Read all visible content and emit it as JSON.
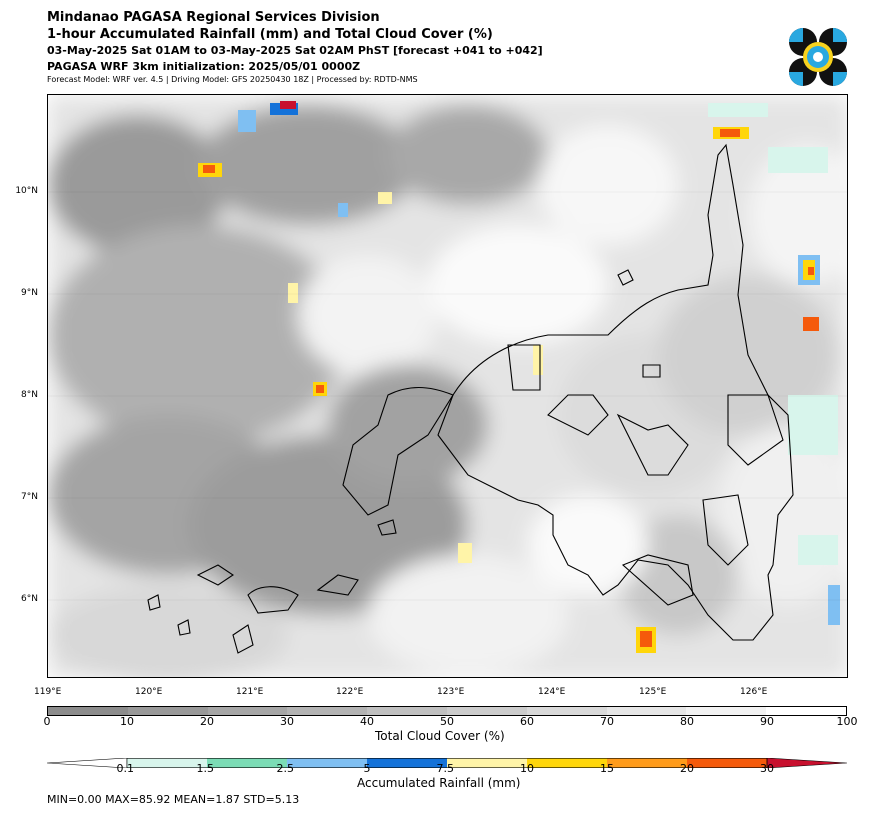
{
  "header": {
    "line1": "Mindanao PAGASA Regional Services Division",
    "line2": "1-hour Accumulated Rainfall (mm) and Total Cloud Cover (%)",
    "line3": "03-May-2025 Sat 01AM to 03-May-2025 Sat 02AM PhST [forecast +041 to +042]",
    "line4": "PAGASA WRF 3km initialization: 2025/05/01 0000Z",
    "line5": "Forecast Model: WRF ver. 4.5 | Driving Model: GFS 20250430 18Z | Processed by: RDTD-NMS"
  },
  "logo": {
    "name": "pagasa-logo",
    "colors": [
      "#111111",
      "#29a8e0",
      "#f7d21e"
    ]
  },
  "map": {
    "lat_labels": [
      "10°N",
      "9°N",
      "8°N",
      "7°N",
      "6°N"
    ],
    "lon_labels": [
      "119°E",
      "120°E",
      "121°E",
      "122°E",
      "123°E",
      "124°E",
      "125°E",
      "126°E"
    ]
  },
  "cloud_colorbar": {
    "ticks": [
      "0",
      "10",
      "20",
      "30",
      "40",
      "50",
      "60",
      "70",
      "80",
      "90",
      "100"
    ],
    "colors": [
      "#8c8c8c",
      "#999999",
      "#a6a6a6",
      "#b3b3b3",
      "#c0c0c0",
      "#cccccc",
      "#d9d9d9",
      "#e6e6e6",
      "#f2f2f2",
      "#ffffff"
    ],
    "label": "Total Cloud Cover (%)"
  },
  "rain_colorbar": {
    "ticks": [
      "0.1",
      "1.5",
      "2.5",
      "5",
      "7.5",
      "10",
      "15",
      "20",
      "30"
    ],
    "colors": [
      "#ffffff",
      "#d8f5ec",
      "#7bdcb5",
      "#7fbff2",
      "#1472d9",
      "#fff4a8",
      "#ffd60a",
      "#ff9b1a",
      "#f55a0b",
      "#c8102e"
    ],
    "label": "Accumulated Rainfall (mm)"
  },
  "stats": "MIN=0.00   MAX=85.92   MEAN=1.87   STD=5.13"
}
